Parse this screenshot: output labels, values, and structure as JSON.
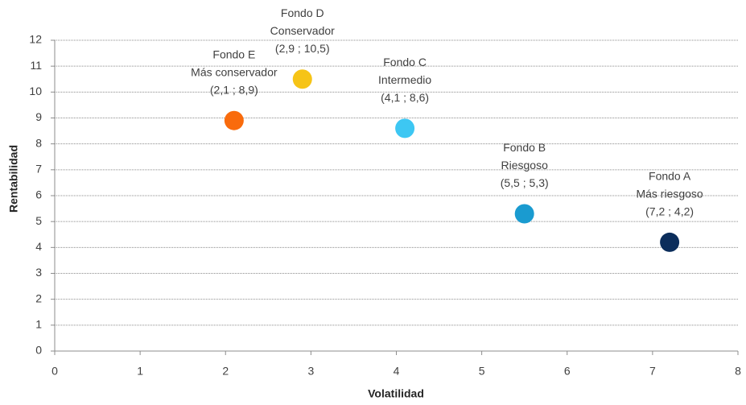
{
  "chart_data": {
    "type": "scatter",
    "x_label": "Volatilidad",
    "y_label": "Rentabilidad",
    "xlim": [
      0,
      8
    ],
    "xticks": [
      0,
      1,
      2,
      3,
      4,
      5,
      6,
      7,
      8
    ],
    "ylim": [
      0,
      12
    ],
    "yticks": [
      0,
      1,
      2,
      3,
      4,
      5,
      6,
      7,
      8,
      9,
      10,
      11,
      12
    ],
    "grid": true,
    "points": [
      {
        "name": "Fondo A",
        "description": "Más riesgoso",
        "x": 7.2,
        "y": 4.2,
        "value_label": "(7,2 ; 4,2)",
        "color": "#0b2d5b"
      },
      {
        "name": "Fondo B",
        "description": "Riesgoso",
        "x": 5.5,
        "y": 5.3,
        "value_label": "(5,5 ; 5,3)",
        "color": "#1a9bd0"
      },
      {
        "name": "Fondo C",
        "description": "Intermedio",
        "x": 4.1,
        "y": 8.6,
        "value_label": "(4,1 ; 8,6)",
        "color": "#3dc7f3"
      },
      {
        "name": "Fondo D",
        "description": "Conservador",
        "x": 2.9,
        "y": 10.5,
        "value_label": "(2,9 ; 10,5)",
        "color": "#f6c417"
      },
      {
        "name": "Fondo E",
        "description": "Más conservador",
        "x": 2.1,
        "y": 8.9,
        "value_label": "(2,1 ; 8,9)",
        "color": "#f96b0c"
      }
    ]
  }
}
